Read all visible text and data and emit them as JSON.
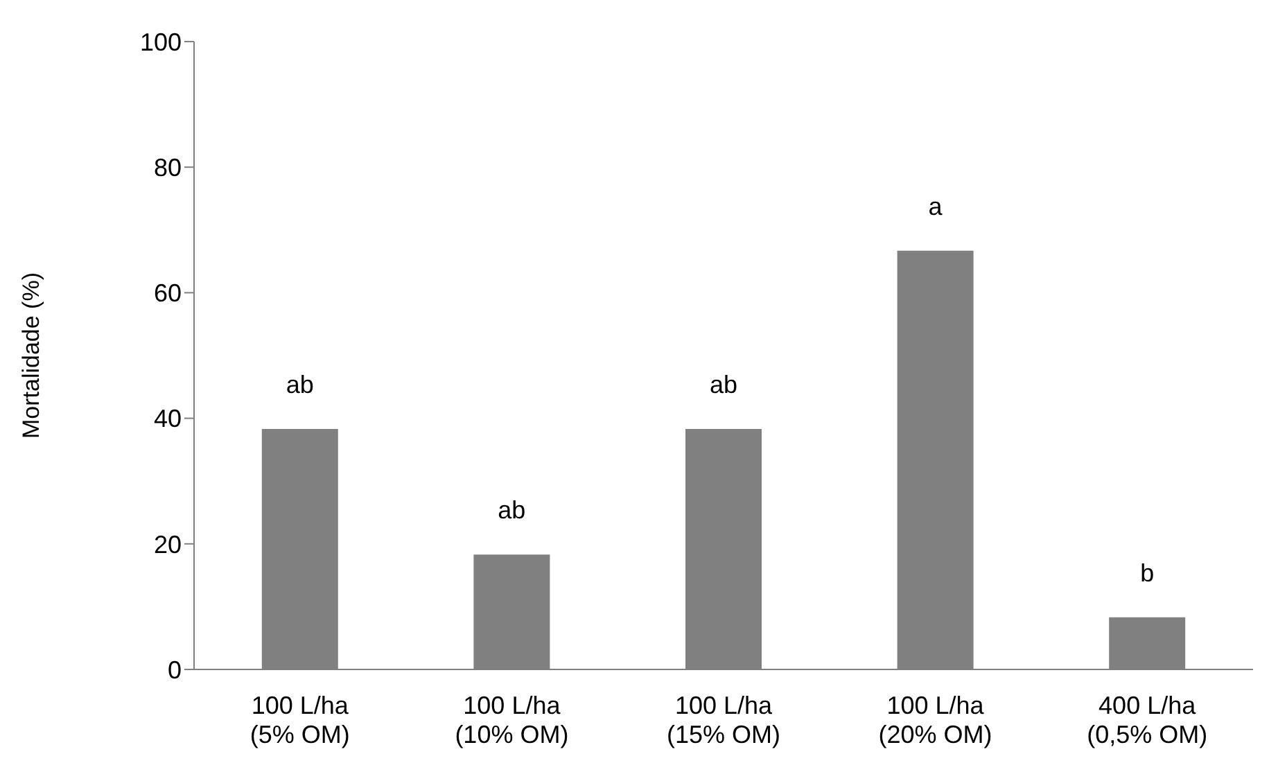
{
  "chart_data": {
    "type": "bar",
    "ylabel": "Mortalidade (%)",
    "categories": [
      "100 L/ha\n(5% OM)",
      "100 L/ha\n(10% OM)",
      "100 L/ha\n(15% OM)",
      "100 L/ha\n(20% OM)",
      "400 L/ha\n(0,5% OM)"
    ],
    "values": [
      38.3,
      18.3,
      38.3,
      66.7,
      8.3
    ],
    "color": "#808080",
    "ylim": [
      0,
      100
    ],
    "yticks": [
      0,
      20,
      40,
      60,
      80,
      100
    ],
    "grid": false,
    "legend": false,
    "annotations": [
      {
        "text": "ab",
        "x": "100 L/ha\n(5% OM)",
        "y": 38.3
      },
      {
        "text": "ab",
        "x": "100 L/ha\n(10% OM)",
        "y": 18.3
      },
      {
        "text": "ab",
        "x": "100 L/ha\n(15% OM)",
        "y": 38.3
      },
      {
        "text": "a",
        "x": "100 L/ha\n(20% OM)",
        "y": 66.7
      },
      {
        "text": "b",
        "x": "400 L/ha\n(0,5% OM)",
        "y": 8.3
      }
    ]
  }
}
